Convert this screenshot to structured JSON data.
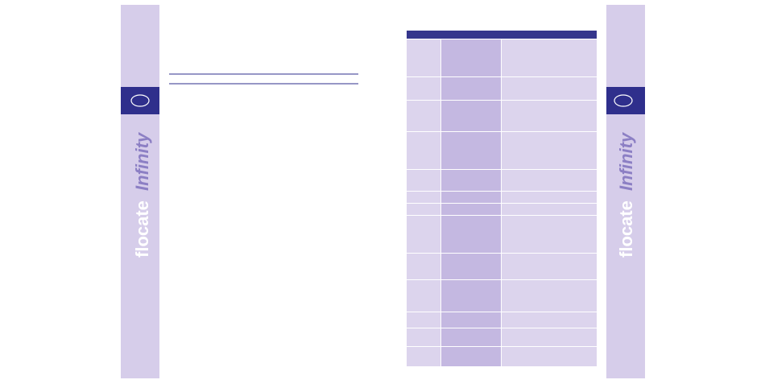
{
  "sidebars": [
    {
      "brand": "flocate",
      "product": "Infinity"
    },
    {
      "brand": "flocate",
      "product": "Infinity"
    }
  ]
}
